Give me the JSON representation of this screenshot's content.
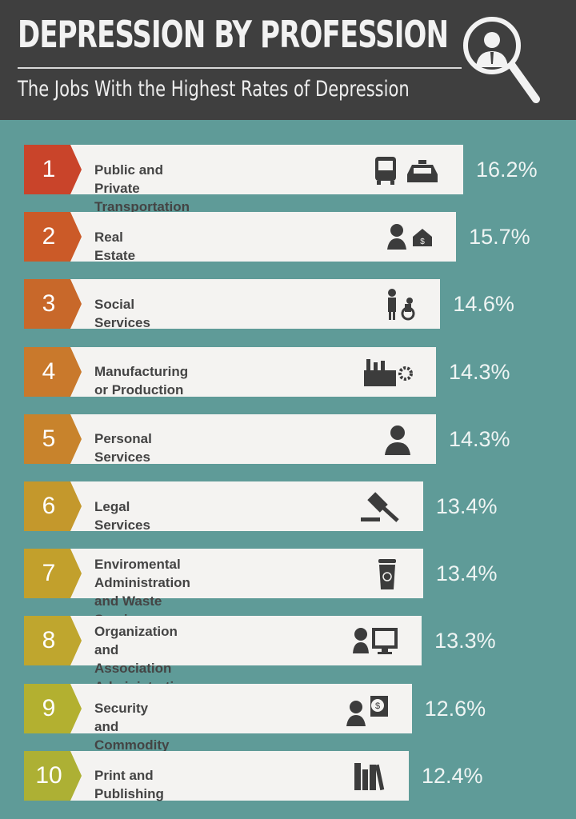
{
  "header": {
    "title": "DEPRESSION BY PROFESSION",
    "subtitle": "The Jobs With the Highest Rates of Depression",
    "icon": "magnifier-businessman-icon"
  },
  "colors": {
    "header_bg": "#3f3f3f",
    "background": "#5f9b98",
    "bar": "#f4f3f1"
  },
  "chart_data": {
    "type": "bar",
    "orientation": "horizontal",
    "title": "DEPRESSION BY PROFESSION",
    "subtitle": "The Jobs With the Highest Rates of Depression",
    "categories": [
      "Public and Private Transportation",
      "Real Estate",
      "Social Services",
      "Manufacturing or Production",
      "Personal Services",
      "Legal Services",
      "Enviromental Administration and Waste Services",
      "Organization and Association Administration",
      "Security and Commodity Brokers",
      "Print and Publishing"
    ],
    "values": [
      16.2,
      15.7,
      14.6,
      14.3,
      14.3,
      13.4,
      13.4,
      13.3,
      12.6,
      12.4
    ],
    "value_labels": [
      "16.2%",
      "15.7%",
      "14.6%",
      "14.3%",
      "14.3%",
      "13.4%",
      "13.4%",
      "13.3%",
      "12.6%",
      "12.4%"
    ],
    "ranks": [
      "1",
      "2",
      "3",
      "4",
      "5",
      "6",
      "7",
      "8",
      "9",
      "10"
    ],
    "label_lines": [
      [
        "Public and Private Transportation"
      ],
      [
        "Real Estate"
      ],
      [
        "Social Services"
      ],
      [
        "Manufacturing or Production"
      ],
      [
        "Personal Services"
      ],
      [
        "Legal Services"
      ],
      [
        "Enviromental Administration",
        "and Waste Services"
      ],
      [
        "Organization and Association",
        "Administration"
      ],
      [
        "Security and Commodity Brokers"
      ],
      [
        "Print and Publishing"
      ]
    ],
    "rank_colors": [
      "#c9442a",
      "#cb5a28",
      "#c8682a",
      "#c9792c",
      "#c8832c",
      "#c4982c",
      "#c2a02c",
      "#bfa62e",
      "#b3b030",
      "#adb034"
    ],
    "icons": [
      "bus-taxi-icon",
      "agent-house-icon",
      "caregiver-wheelchair-icon",
      "factory-gear-icon",
      "service-person-icon",
      "gavel-icon",
      "recycle-bin-icon",
      "admin-computer-icon",
      "broker-coins-icon",
      "books-icon"
    ],
    "grid": false,
    "legend": "none"
  }
}
